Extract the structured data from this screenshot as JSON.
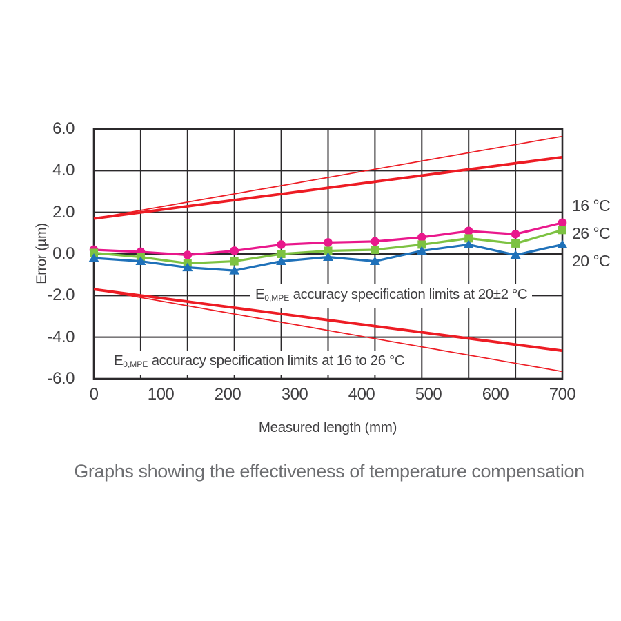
{
  "caption": "Graphs showing the effectiveness of temperature compensation",
  "axes": {
    "y_label": "Error (µm)",
    "x_label": "Measured length (mm)",
    "y_ticks": [
      "6.0",
      "4.0",
      "2.0",
      "0.0",
      "-2.0",
      "-4.0",
      "-6.0"
    ],
    "x_ticks": [
      "0",
      "100",
      "200",
      "300",
      "400",
      "500",
      "600",
      "700"
    ]
  },
  "legend": {
    "items": [
      {
        "label": "16 °C",
        "series": "16c"
      },
      {
        "label": "26 °C",
        "series": "26c"
      },
      {
        "label": "20 °C",
        "series": "20c"
      }
    ]
  },
  "annotations": [
    {
      "e": "E",
      "sub": "0,MPE",
      "text": " accuracy specification limits at 20±2 °C"
    },
    {
      "e": "E",
      "sub": "0,MPE",
      "text": " accuracy specification limits at 16 to 26 °C"
    }
  ],
  "colors": {
    "grid": "#2b292b",
    "limit_red": "#ed1c24",
    "series_16c": "#e9188c",
    "series_26c": "#7dc242",
    "series_20c": "#1f71b9",
    "text_dark": "#3f3e40",
    "caption_gray": "#6d6e71"
  },
  "chart_data": {
    "type": "line",
    "title": "Graphs showing the effectiveness of temperature compensation",
    "xlabel": "Measured length (mm)",
    "ylabel": "Error (µm)",
    "xlim": [
      0,
      700
    ],
    "ylim": [
      -6,
      6
    ],
    "grid": {
      "on": true,
      "x_step": 70,
      "y_step": 2
    },
    "legend_position": "right",
    "x": [
      0,
      70,
      140,
      210,
      280,
      350,
      420,
      490,
      560,
      630,
      700
    ],
    "series": [
      {
        "name": "16 °C",
        "marker": "circle",
        "color": "#e9188c",
        "values": [
          0.2,
          0.1,
          -0.05,
          0.15,
          0.45,
          0.55,
          0.6,
          0.8,
          1.1,
          0.95,
          1.5
        ]
      },
      {
        "name": "26 °C",
        "marker": "square",
        "color": "#7dc242",
        "values": [
          0.05,
          -0.15,
          -0.45,
          -0.35,
          0.0,
          0.15,
          0.2,
          0.45,
          0.75,
          0.5,
          1.15
        ]
      },
      {
        "name": "20 °C",
        "marker": "triangle",
        "color": "#1f71b9",
        "values": [
          -0.2,
          -0.35,
          -0.65,
          -0.8,
          -0.35,
          -0.15,
          -0.35,
          0.15,
          0.45,
          -0.05,
          0.45
        ]
      }
    ],
    "limit_lines": [
      {
        "name": "E0,MPE accuracy specification limit at 20±2 °C (upper)",
        "weight": "thick",
        "x": [
          0,
          700
        ],
        "y": [
          1.7,
          4.65
        ]
      },
      {
        "name": "E0,MPE accuracy specification limit at 20±2 °C (lower)",
        "weight": "thick",
        "x": [
          0,
          700
        ],
        "y": [
          -1.7,
          -4.65
        ]
      },
      {
        "name": "E0,MPE accuracy specification limit at 16 to 26 °C (upper)",
        "weight": "thin",
        "x": [
          0,
          700
        ],
        "y": [
          1.7,
          5.65
        ]
      },
      {
        "name": "E0,MPE accuracy specification limit at 16 to 26 °C (lower)",
        "weight": "thin",
        "x": [
          0,
          700
        ],
        "y": [
          -1.7,
          -5.65
        ]
      }
    ]
  }
}
